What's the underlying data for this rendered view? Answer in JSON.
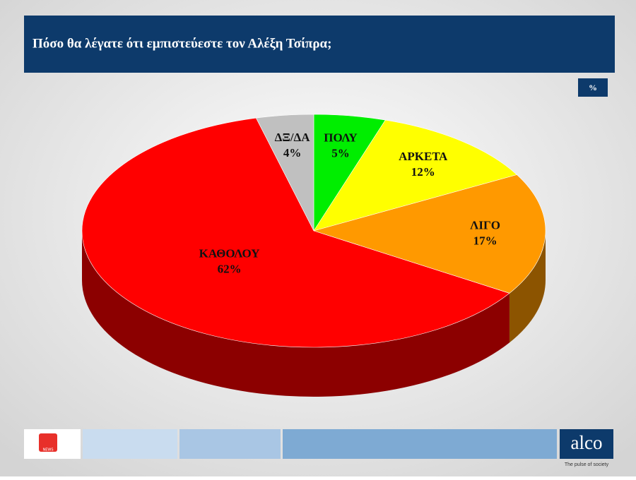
{
  "chart_data": {
    "type": "pie3d",
    "title": "Πόσο θα λέγατε ότι εμπιστεύεστε τον Αλέξη Τσίπρα;",
    "unit_badge": "%",
    "categories": [
      "ΠΟΛΥ",
      "ΑΡΚΕΤΑ",
      "ΛΙΓΟ",
      "ΚΑΘΟΛΟΥ",
      "ΔΞ/ΔΑ"
    ],
    "values": [
      5,
      12,
      17,
      62,
      4
    ],
    "value_labels": [
      "5%",
      "12%",
      "17%",
      "62%",
      "4%"
    ],
    "colors": [
      "#00ee00",
      "#ffff00",
      "#ff9900",
      "#ff0000",
      "#c0c0c0"
    ]
  },
  "footer": {
    "brand": "alco",
    "tagline": "The pulse of society",
    "logo_text": "NEWS"
  }
}
